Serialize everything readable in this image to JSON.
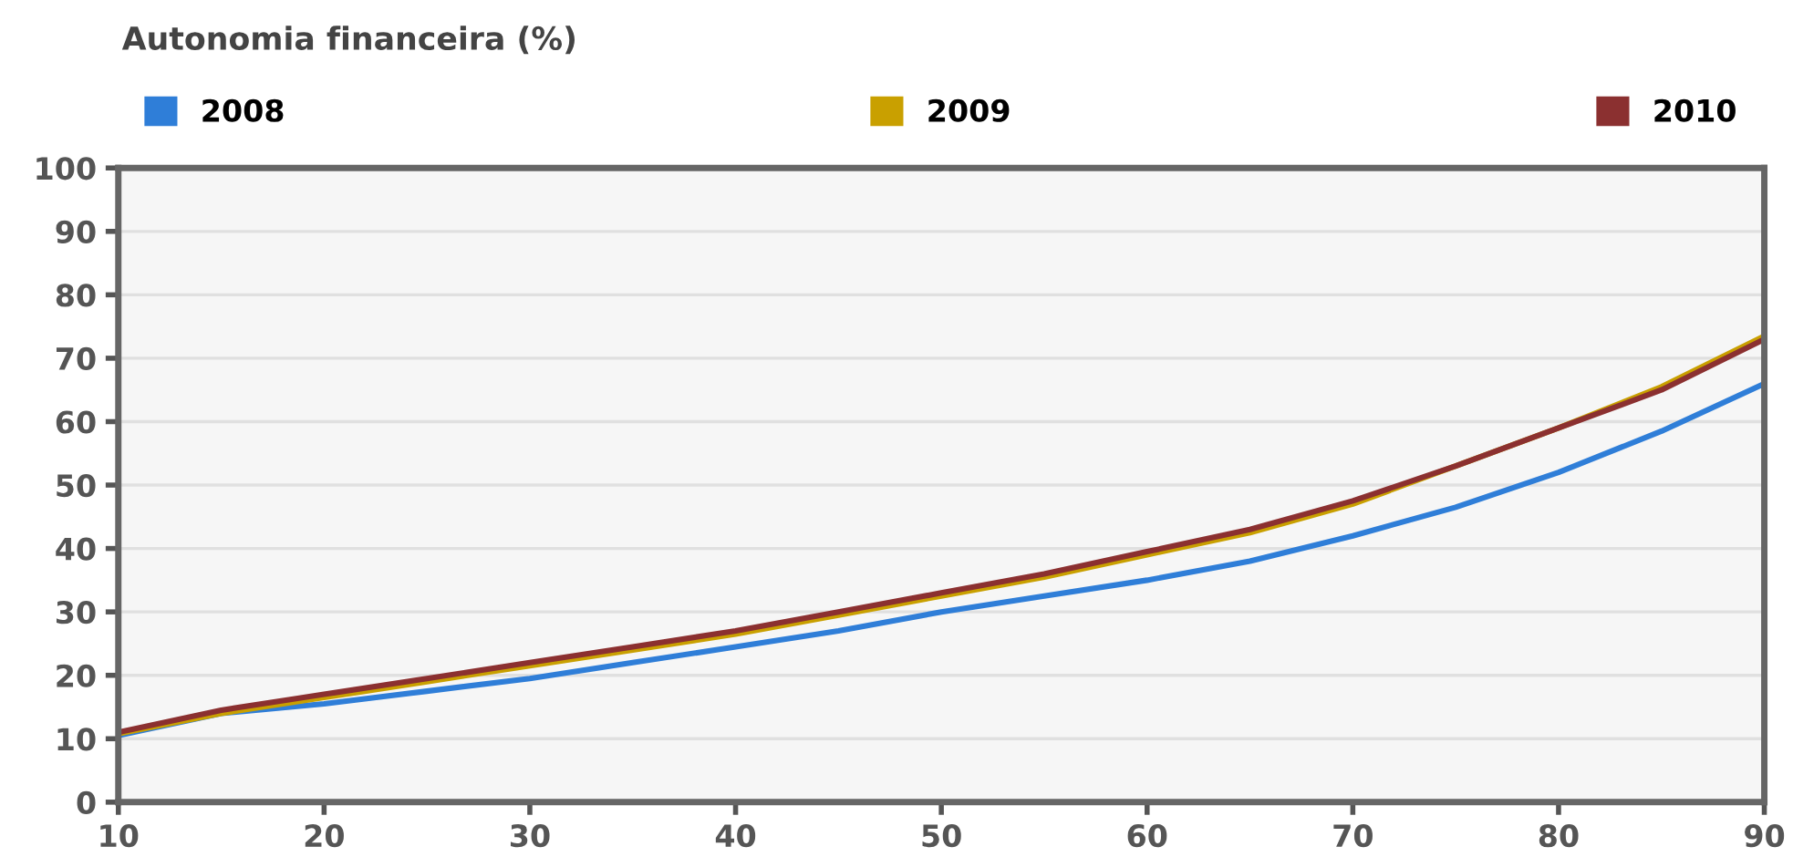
{
  "chart_data": {
    "type": "line",
    "title": "Autonomia financeira (%)",
    "x": [
      10,
      15,
      20,
      25,
      30,
      35,
      40,
      45,
      50,
      55,
      60,
      65,
      70,
      75,
      80,
      85,
      90
    ],
    "series": [
      {
        "name": "2008",
        "color": "#2f7ed8",
        "values": [
          10.5,
          14,
          15.5,
          17.5,
          19.5,
          22,
          24.5,
          27,
          30,
          32.5,
          35,
          38,
          42,
          46.5,
          52,
          58.5,
          66
        ]
      },
      {
        "name": "2009",
        "color": "#c9a000",
        "values": [
          10.8,
          14,
          16.5,
          19,
          21.5,
          24,
          26.5,
          29.5,
          32.5,
          35.5,
          39,
          42.5,
          47,
          53,
          59,
          65.5,
          73.5
        ]
      },
      {
        "name": "2010",
        "color": "#8b3030",
        "values": [
          11,
          14.5,
          17,
          19.5,
          22,
          24.5,
          27,
          30,
          33,
          36,
          39.5,
          43,
          47.5,
          53,
          59,
          65,
          73
        ]
      }
    ],
    "xlim": [
      10,
      90
    ],
    "xticks": [
      10,
      20,
      30,
      40,
      50,
      60,
      70,
      80,
      90
    ],
    "ylim": [
      0,
      100
    ],
    "yticks": [
      0,
      10,
      20,
      30,
      40,
      50,
      60,
      70,
      80,
      90,
      100
    ],
    "grid": "y",
    "legend": "top left",
    "marker": "none",
    "line_style": "solid"
  }
}
